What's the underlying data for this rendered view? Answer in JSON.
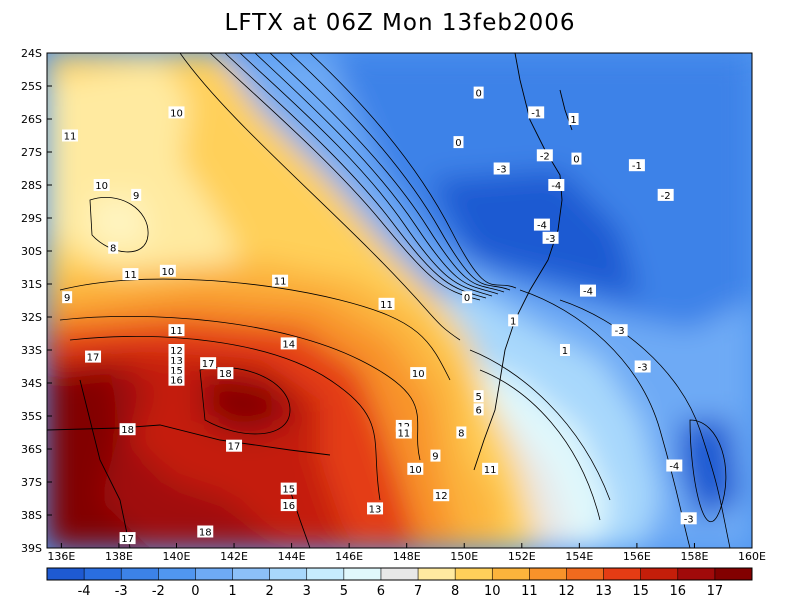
{
  "title": "LFTX at 06Z Mon 13feb2006",
  "map": {
    "lon_range": [
      135.5,
      160
    ],
    "lat_range": [
      -39,
      -24
    ],
    "lon_ticks": [
      "136E",
      "138E",
      "140E",
      "142E",
      "144E",
      "146E",
      "148E",
      "150E",
      "152E",
      "154E",
      "156E",
      "158E",
      "160E"
    ],
    "lat_ticks": [
      "24S",
      "25S",
      "26S",
      "27S",
      "28S",
      "29S",
      "30S",
      "31S",
      "32S",
      "33S",
      "34S",
      "35S",
      "36S",
      "37S",
      "38S",
      "39S"
    ],
    "contour_labels": [
      {
        "text": "0",
        "lon": 150.5,
        "lat": -25.2
      },
      {
        "text": "10",
        "lon": 140.0,
        "lat": -25.8
      },
      {
        "text": "0",
        "lon": 149.8,
        "lat": -26.7
      },
      {
        "text": "-1",
        "lon": 152.5,
        "lat": -25.8
      },
      {
        "text": "1",
        "lon": 153.8,
        "lat": -26.0
      },
      {
        "text": "-1",
        "lon": 156.0,
        "lat": -27.4
      },
      {
        "text": "11",
        "lon": 136.3,
        "lat": -26.5
      },
      {
        "text": "-2",
        "lon": 152.8,
        "lat": -27.1
      },
      {
        "text": "0",
        "lon": 153.9,
        "lat": -27.2
      },
      {
        "text": "-3",
        "lon": 151.3,
        "lat": -27.5
      },
      {
        "text": "10",
        "lon": 137.4,
        "lat": -28.0
      },
      {
        "text": "-4",
        "lon": 153.2,
        "lat": -28.0
      },
      {
        "text": "9",
        "lon": 138.6,
        "lat": -28.3
      },
      {
        "text": "-2",
        "lon": 157.0,
        "lat": -28.3
      },
      {
        "text": "-4",
        "lon": 152.7,
        "lat": -29.2
      },
      {
        "text": "-3",
        "lon": 153.0,
        "lat": -29.6
      },
      {
        "text": "8",
        "lon": 137.8,
        "lat": -29.9
      },
      {
        "text": "10",
        "lon": 139.7,
        "lat": -30.6
      },
      {
        "text": "11",
        "lon": 138.4,
        "lat": -30.7
      },
      {
        "text": "11",
        "lon": 143.6,
        "lat": -30.9
      },
      {
        "text": "-4",
        "lon": 154.3,
        "lat": -31.2
      },
      {
        "text": "9",
        "lon": 136.2,
        "lat": -31.4
      },
      {
        "text": "0",
        "lon": 150.1,
        "lat": -31.4
      },
      {
        "text": "11",
        "lon": 147.3,
        "lat": -31.6
      },
      {
        "text": "1",
        "lon": 151.7,
        "lat": -32.1
      },
      {
        "text": "-3",
        "lon": 155.4,
        "lat": -32.4
      },
      {
        "text": "11",
        "lon": 140.0,
        "lat": -32.4
      },
      {
        "text": "14",
        "lon": 143.9,
        "lat": -32.8
      },
      {
        "text": "1",
        "lon": 153.5,
        "lat": -33.0
      },
      {
        "text": "17",
        "lon": 137.1,
        "lat": -33.2
      },
      {
        "text": "12",
        "lon": 140.0,
        "lat": -33.0
      },
      {
        "text": "13",
        "lon": 140.0,
        "lat": -33.3
      },
      {
        "text": "15",
        "lon": 140.0,
        "lat": -33.6
      },
      {
        "text": "16",
        "lon": 140.0,
        "lat": -33.9
      },
      {
        "text": "17",
        "lon": 141.1,
        "lat": -33.4
      },
      {
        "text": "18",
        "lon": 141.7,
        "lat": -33.7
      },
      {
        "text": "-3",
        "lon": 156.2,
        "lat": -33.5
      },
      {
        "text": "10",
        "lon": 148.4,
        "lat": -33.7
      },
      {
        "text": "5",
        "lon": 150.5,
        "lat": -34.4
      },
      {
        "text": "6",
        "lon": 150.5,
        "lat": -34.8
      },
      {
        "text": "12",
        "lon": 147.9,
        "lat": -35.3
      },
      {
        "text": "11",
        "lon": 147.9,
        "lat": -35.5
      },
      {
        "text": "8",
        "lon": 149.9,
        "lat": -35.5
      },
      {
        "text": "18",
        "lon": 138.3,
        "lat": -35.4
      },
      {
        "text": "17",
        "lon": 142.0,
        "lat": -35.9
      },
      {
        "text": "9",
        "lon": 149.0,
        "lat": -36.2
      },
      {
        "text": "10",
        "lon": 148.3,
        "lat": -36.6
      },
      {
        "text": "11",
        "lon": 150.9,
        "lat": -36.6
      },
      {
        "text": "-4",
        "lon": 157.3,
        "lat": -36.5
      },
      {
        "text": "15",
        "lon": 143.9,
        "lat": -37.2
      },
      {
        "text": "12",
        "lon": 149.2,
        "lat": -37.4
      },
      {
        "text": "16",
        "lon": 143.9,
        "lat": -37.7
      },
      {
        "text": "13",
        "lon": 146.9,
        "lat": -37.8
      },
      {
        "text": "-3",
        "lon": 157.8,
        "lat": -38.1
      },
      {
        "text": "18",
        "lon": 141.0,
        "lat": -38.5
      },
      {
        "text": "17",
        "lon": 138.3,
        "lat": -38.7
      }
    ]
  },
  "colorbar": {
    "labels": [
      "-4",
      "-3",
      "-2",
      "0",
      "1",
      "2",
      "3",
      "5",
      "6",
      "7",
      "8",
      "10",
      "11",
      "12",
      "13",
      "15",
      "16",
      "17"
    ],
    "colors": [
      "#1e5ad2",
      "#2a6ee0",
      "#3c82e8",
      "#5096f0",
      "#6eaaf5",
      "#8cc0f8",
      "#a8d8fc",
      "#c6ecfe",
      "#e0f8fc",
      "#e8e8e8",
      "#ffeaa0",
      "#ffd05a",
      "#fcb43c",
      "#f8922a",
      "#f06a1e",
      "#e43c14",
      "#c41e0a",
      "#a00a0a",
      "#820000"
    ]
  }
}
